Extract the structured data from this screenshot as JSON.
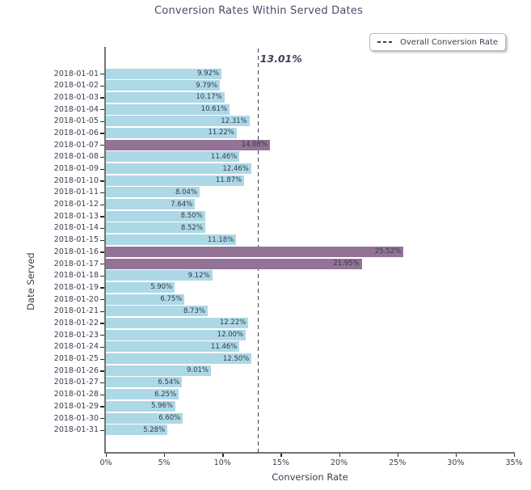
{
  "chart": {
    "title": "Conversion Rates Within Served Dates",
    "xlabel": "Conversion Rate",
    "ylabel": "Date Served",
    "legend_label": "Overall Conversion Rate",
    "annotation": "13.01%"
  },
  "chart_data": {
    "type": "bar",
    "orientation": "horizontal",
    "title": "Conversion Rates Within Served Dates",
    "xlabel": "Conversion Rate",
    "ylabel": "Date Served",
    "categories": [
      "2018-01-01",
      "2018-01-02",
      "2018-01-03",
      "2018-01-04",
      "2018-01-05",
      "2018-01-06",
      "2018-01-07",
      "2018-01-08",
      "2018-01-09",
      "2018-01-10",
      "2018-01-11",
      "2018-01-12",
      "2018-01-13",
      "2018-01-14",
      "2018-01-15",
      "2018-01-16",
      "2018-01-17",
      "2018-01-18",
      "2018-01-19",
      "2018-01-20",
      "2018-01-21",
      "2018-01-22",
      "2018-01-23",
      "2018-01-24",
      "2018-01-25",
      "2018-01-26",
      "2018-01-27",
      "2018-01-28",
      "2018-01-29",
      "2018-01-30",
      "2018-01-31"
    ],
    "values": [
      9.92,
      9.79,
      10.17,
      10.61,
      12.31,
      11.22,
      14.08,
      11.46,
      12.46,
      11.87,
      8.04,
      7.64,
      8.5,
      8.52,
      11.18,
      25.52,
      21.95,
      9.12,
      5.9,
      6.75,
      8.73,
      12.22,
      12.0,
      11.46,
      12.5,
      9.01,
      6.54,
      6.25,
      5.96,
      6.6,
      5.28
    ],
    "overall_rate": 13.01,
    "overall_rate_label": "13.01%",
    "xlim": [
      0,
      35
    ],
    "x_tick_values": [
      0,
      5,
      10,
      15,
      20,
      25,
      30,
      35
    ],
    "x_tick_labels": [
      "0%",
      "5%",
      "10%",
      "15%",
      "20%",
      "25%",
      "30%",
      "35%"
    ],
    "grid": false,
    "legend_position": "top-right",
    "legend_entries": [
      "Overall Conversion Rate"
    ],
    "bar_color": "#add8e6",
    "highlight_color": "#927396",
    "line_color": "#39425a"
  }
}
